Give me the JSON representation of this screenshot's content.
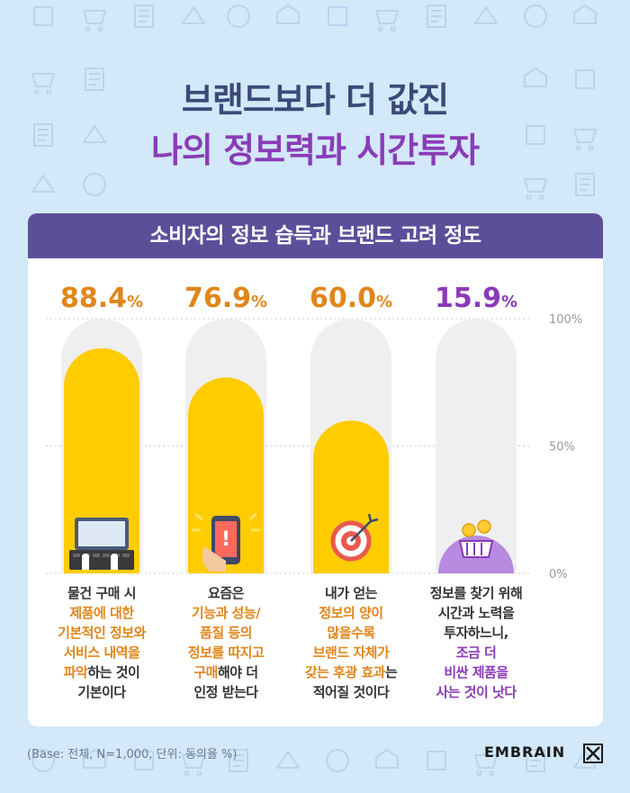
{
  "title": {
    "line1": "브랜드보다 더 값진",
    "line2": "나의 정보력과 시간투자"
  },
  "chart_data": {
    "type": "bar",
    "title": "소비자의 정보 습득과 브랜드 고려 정도",
    "ylim": [
      0,
      100
    ],
    "yticks": [
      "0%",
      "50%",
      "100%"
    ],
    "grid": true,
    "series": [
      {
        "values": [
          88.4,
          76.9,
          60.0,
          15.9
        ],
        "value_labels": [
          "88.4",
          "76.9",
          "60.0",
          "15.9"
        ],
        "unit": "%"
      }
    ],
    "categories": [
      {
        "icon": "laptop-typing-icon",
        "lines": [
          [
            {
              "t": "물건 구매 시",
              "h": ""
            }
          ],
          [
            {
              "t": "제품에 대한",
              "h": "orange"
            }
          ],
          [
            {
              "t": "기본적인 정보와",
              "h": "orange"
            }
          ],
          [
            {
              "t": "서비스 내역을",
              "h": "orange"
            }
          ],
          [
            {
              "t": "파악",
              "h": "orange"
            },
            {
              "t": "하는 것이",
              "h": ""
            }
          ],
          [
            {
              "t": "기본이다",
              "h": ""
            }
          ]
        ]
      },
      {
        "icon": "smartphone-alert-icon",
        "lines": [
          [
            {
              "t": "요즘은",
              "h": ""
            }
          ],
          [
            {
              "t": "기능과 성능/",
              "h": "orange"
            }
          ],
          [
            {
              "t": "품질 등의",
              "h": "orange"
            }
          ],
          [
            {
              "t": "정보를 따지고",
              "h": "orange"
            }
          ],
          [
            {
              "t": "구매",
              "h": "orange"
            },
            {
              "t": "해야 더",
              "h": ""
            }
          ],
          [
            {
              "t": "인정 받는다",
              "h": ""
            }
          ]
        ]
      },
      {
        "icon": "target-arrow-icon",
        "lines": [
          [
            {
              "t": "내가 얻는",
              "h": ""
            }
          ],
          [
            {
              "t": "정보의 양이",
              "h": "orange"
            }
          ],
          [
            {
              "t": "많을수록",
              "h": "orange"
            }
          ],
          [
            {
              "t": "브랜드 자체가",
              "h": "orange"
            }
          ],
          [
            {
              "t": "갖는 후광 효과",
              "h": "orange"
            },
            {
              "t": "는",
              "h": ""
            }
          ],
          [
            {
              "t": "적어질 것이다",
              "h": ""
            }
          ]
        ]
      },
      {
        "icon": "basket-coins-icon",
        "lines": [
          [
            {
              "t": "정보를 찾기 위해",
              "h": ""
            }
          ],
          [
            {
              "t": "시간과 노력을",
              "h": ""
            }
          ],
          [
            {
              "t": "투자하느니,",
              "h": ""
            }
          ],
          [
            {
              "t": "조금 더",
              "h": "purple"
            }
          ],
          [
            {
              "t": "비싼 제품을",
              "h": "purple"
            }
          ],
          [
            {
              "t": "사는 것이 낫다",
              "h": "purple"
            }
          ]
        ]
      }
    ]
  },
  "colors": {
    "background": "#d3e8f8",
    "bar_fill": "#ffcc00",
    "bar_track": "#efefef",
    "value_orange": "#e0861b",
    "value_purple": "#8a3bb8",
    "header": "#5c4f9a",
    "title_navy": "#3a4a78",
    "title_purple": "#8a3bb8"
  },
  "footer": {
    "footnote": "(Base: 전체, N=1,000, 단위: 동의율 %)",
    "brand": "EMBRAIN"
  }
}
